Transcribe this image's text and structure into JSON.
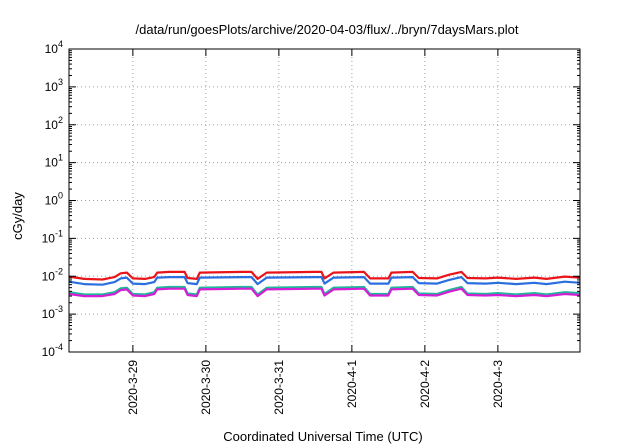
{
  "chart_data": {
    "type": "line",
    "title": "/data/run/goesPlots/archive/2020-04-03/flux/../bryn/7daysMars.plot",
    "xlabel": "Coordinated Universal Time (UTC)",
    "ylabel": "cGy/day",
    "yscale": "log",
    "ylim": [
      0.0001,
      10000
    ],
    "y_ticks": [
      {
        "base": "10",
        "exp": "-4",
        "value": 0.0001
      },
      {
        "base": "10",
        "exp": "-3",
        "value": 0.001
      },
      {
        "base": "10",
        "exp": "-2",
        "value": 0.01
      },
      {
        "base": "10",
        "exp": "-1",
        "value": 0.1
      },
      {
        "base": "10",
        "exp": "0",
        "value": 1
      },
      {
        "base": "10",
        "exp": "1",
        "value": 10
      },
      {
        "base": "10",
        "exp": "2",
        "value": 100
      },
      {
        "base": "10",
        "exp": "3",
        "value": 1000
      },
      {
        "base": "10",
        "exp": "4",
        "value": 10000
      }
    ],
    "xlim": [
      "2020-03-28T03:00",
      "2020-04-04T03:00"
    ],
    "x_ticks": [
      {
        "label": "2020-3-29",
        "value": "2020-03-29T00:00"
      },
      {
        "label": "2020-3-30",
        "value": "2020-03-30T00:00"
      },
      {
        "label": "2020-3-31",
        "value": "2020-03-31T00:00"
      },
      {
        "label": "2020-4-1",
        "value": "2020-04-01T00:00"
      },
      {
        "label": "2020-4-2",
        "value": "2020-04-02T00:00"
      },
      {
        "label": "2020-4-3",
        "value": "2020-04-03T00:00"
      }
    ],
    "grid": true,
    "series": [
      {
        "color": "#e8141a",
        "points": [
          [
            "2020-03-28T03:00",
            0.0098
          ],
          [
            "2020-03-28T08:00",
            0.0085
          ],
          [
            "2020-03-28T14:00",
            0.0082
          ],
          [
            "2020-03-28T18:00",
            0.0095
          ],
          [
            "2020-03-28T20:00",
            0.012
          ],
          [
            "2020-03-28T22:00",
            0.0125
          ],
          [
            "2020-03-29T00:00",
            0.0088
          ],
          [
            "2020-03-29T04:00",
            0.0085
          ],
          [
            "2020-03-29T07:00",
            0.0095
          ],
          [
            "2020-03-29T08:00",
            0.0125
          ],
          [
            "2020-03-29T12:00",
            0.013
          ],
          [
            "2020-03-29T17:00",
            0.013
          ],
          [
            "2020-03-29T18:00",
            0.009
          ],
          [
            "2020-03-29T21:00",
            0.0085
          ],
          [
            "2020-03-29T22:00",
            0.0125
          ],
          [
            "2020-03-30T12:00",
            0.013
          ],
          [
            "2020-03-30T15:00",
            0.013
          ],
          [
            "2020-03-30T17:00",
            0.0085
          ],
          [
            "2020-03-30T20:00",
            0.0125
          ],
          [
            "2020-03-31T12:00",
            0.013
          ],
          [
            "2020-03-31T14:00",
            0.013
          ],
          [
            "2020-03-31T15:00",
            0.0088
          ],
          [
            "2020-03-31T18:00",
            0.0125
          ],
          [
            "2020-04-01T04:00",
            0.013
          ],
          [
            "2020-04-01T06:00",
            0.0088
          ],
          [
            "2020-04-01T12:00",
            0.0088
          ],
          [
            "2020-04-01T13:00",
            0.0125
          ],
          [
            "2020-04-01T20:00",
            0.013
          ],
          [
            "2020-04-01T22:00",
            0.009
          ],
          [
            "2020-04-02T04:00",
            0.0088
          ],
          [
            "2020-04-02T08:00",
            0.011
          ],
          [
            "2020-04-02T12:00",
            0.013
          ],
          [
            "2020-04-02T14:00",
            0.009
          ],
          [
            "2020-04-02T20:00",
            0.0088
          ],
          [
            "2020-04-03T00:00",
            0.0092
          ],
          [
            "2020-04-03T06:00",
            0.0085
          ],
          [
            "2020-04-03T12:00",
            0.0092
          ],
          [
            "2020-04-03T16:00",
            0.0085
          ],
          [
            "2020-04-03T22:00",
            0.0098
          ],
          [
            "2020-04-04T03:00",
            0.0092
          ]
        ]
      },
      {
        "color": "#2a6fdf",
        "points": [
          [
            "2020-03-28T03:00",
            0.0072
          ],
          [
            "2020-03-28T08:00",
            0.0062
          ],
          [
            "2020-03-28T14:00",
            0.006
          ],
          [
            "2020-03-28T18:00",
            0.007
          ],
          [
            "2020-03-28T20:00",
            0.0088
          ],
          [
            "2020-03-28T22:00",
            0.0092
          ],
          [
            "2020-03-29T00:00",
            0.0064
          ],
          [
            "2020-03-29T04:00",
            0.0062
          ],
          [
            "2020-03-29T07:00",
            0.007
          ],
          [
            "2020-03-29T08:00",
            0.0092
          ],
          [
            "2020-03-29T12:00",
            0.0095
          ],
          [
            "2020-03-29T17:00",
            0.0095
          ],
          [
            "2020-03-29T18:00",
            0.0066
          ],
          [
            "2020-03-29T21:00",
            0.0062
          ],
          [
            "2020-03-29T22:00",
            0.0092
          ],
          [
            "2020-03-30T12:00",
            0.0095
          ],
          [
            "2020-03-30T15:00",
            0.0095
          ],
          [
            "2020-03-30T17:00",
            0.0062
          ],
          [
            "2020-03-30T20:00",
            0.0092
          ],
          [
            "2020-03-31T12:00",
            0.0095
          ],
          [
            "2020-03-31T14:00",
            0.0095
          ],
          [
            "2020-03-31T15:00",
            0.0064
          ],
          [
            "2020-03-31T18:00",
            0.0092
          ],
          [
            "2020-04-01T04:00",
            0.0095
          ],
          [
            "2020-04-01T06:00",
            0.0064
          ],
          [
            "2020-04-01T12:00",
            0.0064
          ],
          [
            "2020-04-01T13:00",
            0.0092
          ],
          [
            "2020-04-01T20:00",
            0.0095
          ],
          [
            "2020-04-01T22:00",
            0.0066
          ],
          [
            "2020-04-02T04:00",
            0.0064
          ],
          [
            "2020-04-02T08:00",
            0.008
          ],
          [
            "2020-04-02T12:00",
            0.0095
          ],
          [
            "2020-04-02T14:00",
            0.0066
          ],
          [
            "2020-04-02T20:00",
            0.0064
          ],
          [
            "2020-04-03T00:00",
            0.0067
          ],
          [
            "2020-04-03T06:00",
            0.0062
          ],
          [
            "2020-04-03T12:00",
            0.0067
          ],
          [
            "2020-04-03T16:00",
            0.0062
          ],
          [
            "2020-04-03T22:00",
            0.0072
          ],
          [
            "2020-04-04T03:00",
            0.0067
          ]
        ]
      },
      {
        "color": "#1fb79a",
        "points": [
          [
            "2020-03-28T03:00",
            0.0038
          ],
          [
            "2020-03-28T08:00",
            0.0033
          ],
          [
            "2020-03-28T14:00",
            0.0033
          ],
          [
            "2020-03-28T18:00",
            0.0038
          ],
          [
            "2020-03-28T20:00",
            0.0048
          ],
          [
            "2020-03-28T22:00",
            0.005
          ],
          [
            "2020-03-29T00:00",
            0.0034
          ],
          [
            "2020-03-29T04:00",
            0.0033
          ],
          [
            "2020-03-29T07:00",
            0.0038
          ],
          [
            "2020-03-29T08:00",
            0.005
          ],
          [
            "2020-03-29T12:00",
            0.0052
          ],
          [
            "2020-03-29T17:00",
            0.0052
          ],
          [
            "2020-03-29T18:00",
            0.0035
          ],
          [
            "2020-03-29T21:00",
            0.0033
          ],
          [
            "2020-03-29T22:00",
            0.005
          ],
          [
            "2020-03-30T12:00",
            0.0052
          ],
          [
            "2020-03-30T15:00",
            0.0052
          ],
          [
            "2020-03-30T17:00",
            0.0033
          ],
          [
            "2020-03-30T20:00",
            0.005
          ],
          [
            "2020-03-31T12:00",
            0.0052
          ],
          [
            "2020-03-31T14:00",
            0.0052
          ],
          [
            "2020-03-31T15:00",
            0.0034
          ],
          [
            "2020-03-31T18:00",
            0.005
          ],
          [
            "2020-04-01T04:00",
            0.0052
          ],
          [
            "2020-04-01T06:00",
            0.0034
          ],
          [
            "2020-04-01T12:00",
            0.0034
          ],
          [
            "2020-04-01T13:00",
            0.005
          ],
          [
            "2020-04-01T20:00",
            0.0052
          ],
          [
            "2020-04-01T22:00",
            0.0035
          ],
          [
            "2020-04-02T04:00",
            0.0034
          ],
          [
            "2020-04-02T08:00",
            0.0043
          ],
          [
            "2020-04-02T12:00",
            0.0052
          ],
          [
            "2020-04-02T14:00",
            0.0035
          ],
          [
            "2020-04-02T20:00",
            0.0034
          ],
          [
            "2020-04-03T00:00",
            0.0036
          ],
          [
            "2020-04-03T06:00",
            0.0033
          ],
          [
            "2020-04-03T12:00",
            0.0036
          ],
          [
            "2020-04-03T16:00",
            0.0033
          ],
          [
            "2020-04-03T22:00",
            0.0038
          ],
          [
            "2020-04-04T03:00",
            0.0036
          ]
        ]
      },
      {
        "color": "#d41fd4",
        "points": [
          [
            "2020-03-28T03:00",
            0.0034
          ],
          [
            "2020-03-28T08:00",
            0.003
          ],
          [
            "2020-03-28T14:00",
            0.003
          ],
          [
            "2020-03-28T18:00",
            0.0034
          ],
          [
            "2020-03-28T20:00",
            0.0043
          ],
          [
            "2020-03-28T22:00",
            0.0045
          ],
          [
            "2020-03-29T00:00",
            0.0031
          ],
          [
            "2020-03-29T04:00",
            0.003
          ],
          [
            "2020-03-29T07:00",
            0.0034
          ],
          [
            "2020-03-29T08:00",
            0.0045
          ],
          [
            "2020-03-29T12:00",
            0.0047
          ],
          [
            "2020-03-29T17:00",
            0.0047
          ],
          [
            "2020-03-29T18:00",
            0.0032
          ],
          [
            "2020-03-29T21:00",
            0.003
          ],
          [
            "2020-03-29T22:00",
            0.0045
          ],
          [
            "2020-03-30T12:00",
            0.0047
          ],
          [
            "2020-03-30T15:00",
            0.0047
          ],
          [
            "2020-03-30T17:00",
            0.003
          ],
          [
            "2020-03-30T20:00",
            0.0045
          ],
          [
            "2020-03-31T12:00",
            0.0047
          ],
          [
            "2020-03-31T14:00",
            0.0047
          ],
          [
            "2020-03-31T15:00",
            0.0031
          ],
          [
            "2020-03-31T18:00",
            0.0045
          ],
          [
            "2020-04-01T04:00",
            0.0047
          ],
          [
            "2020-04-01T06:00",
            0.0031
          ],
          [
            "2020-04-01T12:00",
            0.0031
          ],
          [
            "2020-04-01T13:00",
            0.0045
          ],
          [
            "2020-04-01T20:00",
            0.0047
          ],
          [
            "2020-04-01T22:00",
            0.0032
          ],
          [
            "2020-04-02T04:00",
            0.0031
          ],
          [
            "2020-04-02T08:00",
            0.0039
          ],
          [
            "2020-04-02T12:00",
            0.0047
          ],
          [
            "2020-04-02T14:00",
            0.0032
          ],
          [
            "2020-04-02T20:00",
            0.0031
          ],
          [
            "2020-04-03T00:00",
            0.0032
          ],
          [
            "2020-04-03T06:00",
            0.003
          ],
          [
            "2020-04-03T12:00",
            0.0032
          ],
          [
            "2020-04-03T16:00",
            0.003
          ],
          [
            "2020-04-03T22:00",
            0.0034
          ],
          [
            "2020-04-04T03:00",
            0.0032
          ]
        ]
      }
    ]
  }
}
